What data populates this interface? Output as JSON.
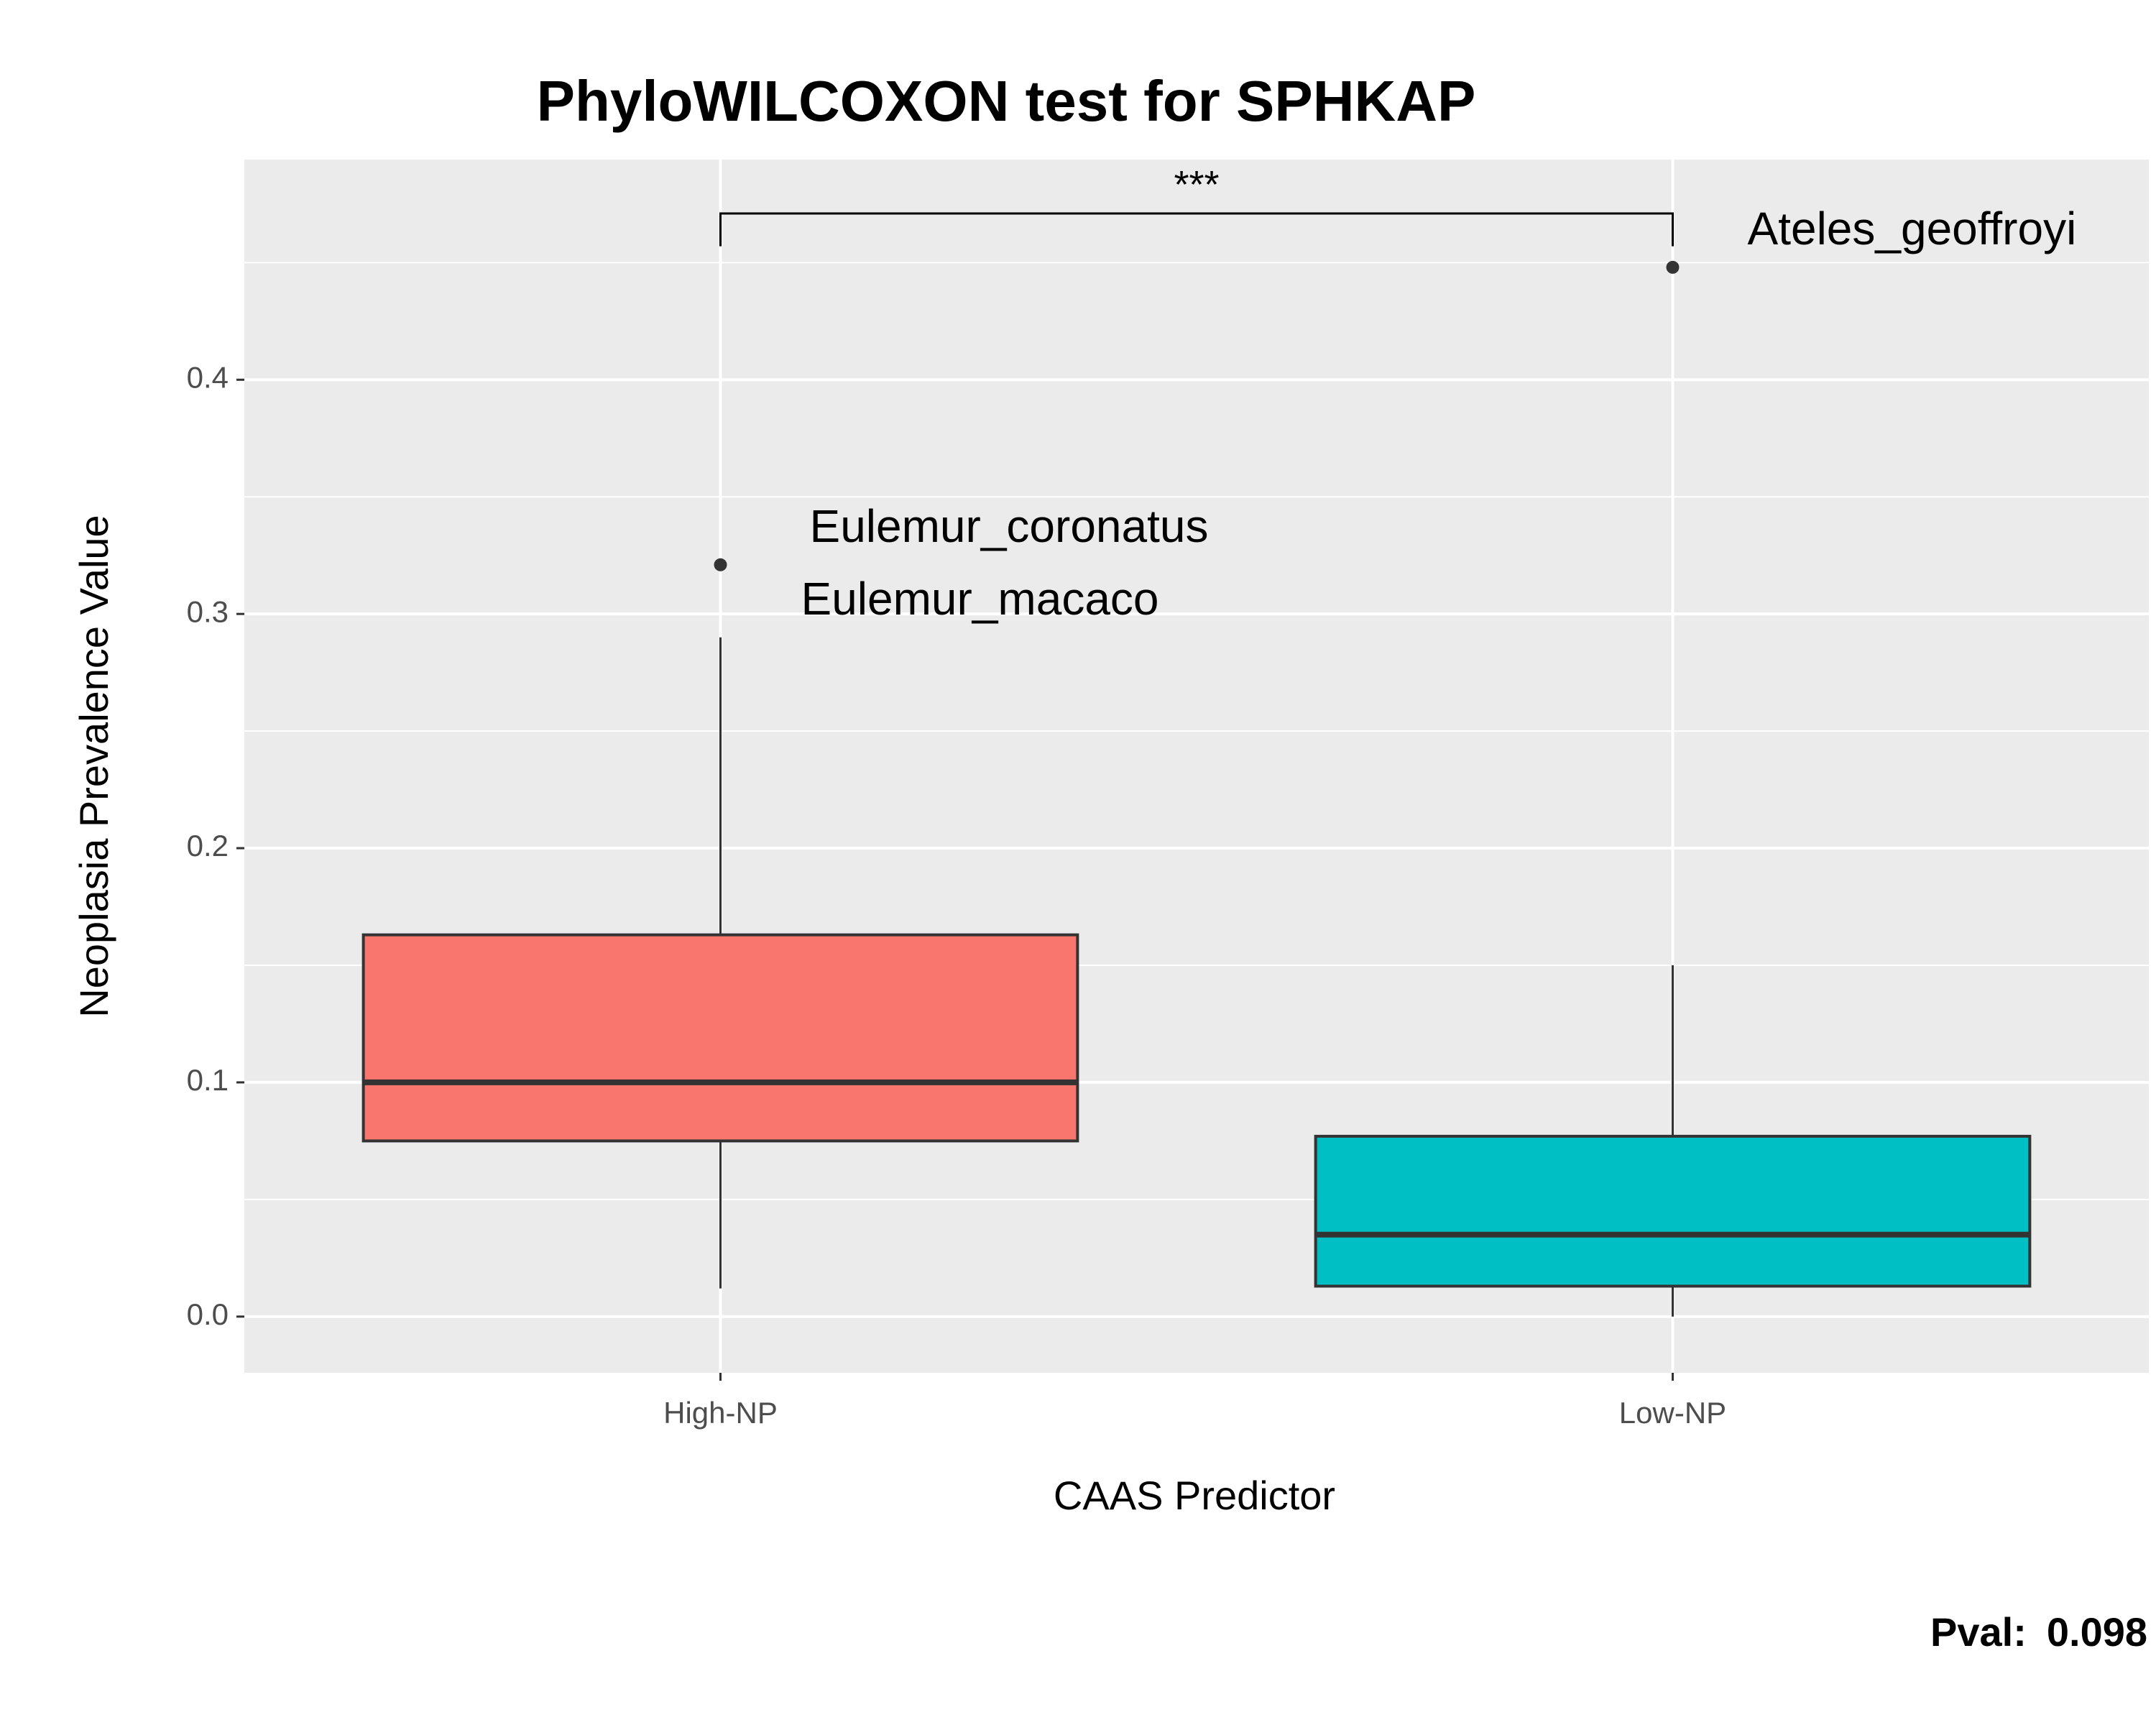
{
  "chart_data": {
    "type": "boxplot",
    "title": "PhyloWILCOXON test for SPHKAP",
    "xlabel": "CAAS Predictor",
    "ylabel": "Neoplasia Prevalence Value",
    "ylim": [
      -0.024,
      0.494
    ],
    "yticks": [
      0.0,
      0.1,
      0.2,
      0.3,
      0.4
    ],
    "ytick_labels": [
      "0.0",
      "0.1",
      "0.2",
      "0.3",
      "0.4"
    ],
    "categories": [
      "High-NP",
      "Low-NP"
    ],
    "grid": true,
    "legend": "none",
    "boxes": [
      {
        "category": "High-NP",
        "whisker_low": 0.012,
        "q1": 0.075,
        "median": 0.1,
        "q3": 0.163,
        "whisker_high": 0.29,
        "outliers": [
          0.321
        ],
        "color": "#F8766D"
      },
      {
        "category": "Low-NP",
        "whisker_low": 0.0,
        "q1": 0.013,
        "median": 0.035,
        "q3": 0.077,
        "whisker_high": 0.15,
        "outliers": [
          0.448
        ],
        "color": "#00BFC4"
      }
    ],
    "annotations": [
      {
        "text": "Ateles_geoffroyi",
        "x": "Low-NP",
        "y": 0.463
      },
      {
        "text": "Eulemur_coronatus",
        "x": "High-NP",
        "y": 0.336
      },
      {
        "text": "Eulemur_macaco",
        "x": "High-NP",
        "y": 0.305
      }
    ],
    "significance": {
      "label": "***",
      "from": "High-NP",
      "to": "Low-NP",
      "y": 0.471,
      "tip_low": 0.457
    },
    "footer": {
      "label": "Pval:",
      "value": "0.098"
    },
    "colors": {
      "panel_bg": "#EBEBEB",
      "grid": "#FFFFFF",
      "box_outline": "#333333",
      "tick_text": "#4D4D4D"
    }
  }
}
